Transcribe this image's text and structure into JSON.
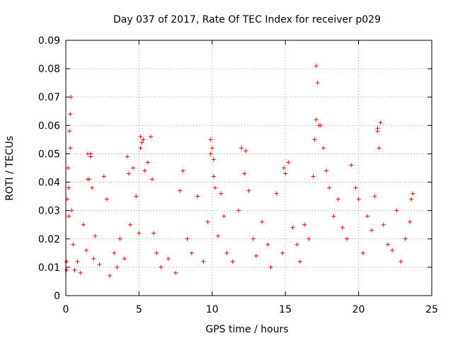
{
  "chart_data": {
    "type": "scatter",
    "title": "Day 037 of 2017, Rate Of TEC Index for receiver p029",
    "xlabel": "GPS time / hours",
    "ylabel": "ROTI / TECUs",
    "xlim": [
      0,
      25
    ],
    "ylim": [
      0,
      0.09
    ],
    "x_ticks": [
      "0",
      "5",
      "10",
      "15",
      "20",
      "25"
    ],
    "y_ticks": [
      "0",
      "0.01",
      "0.02",
      "0.03",
      "0.04",
      "0.05",
      "0.06",
      "0.07",
      "0.08",
      "0.09"
    ],
    "grid": true,
    "marker": "+",
    "color": "#ff0000",
    "series": [
      {
        "x": [
          0.05,
          0.1,
          0.15,
          0.2,
          0.25,
          0.3,
          0.35,
          0.4,
          0.5,
          0.6,
          0.8,
          1.0,
          1.2,
          1.4,
          1.5,
          1.6,
          1.7,
          1.8,
          1.9,
          2.0,
          2.3,
          2.6,
          2.8,
          3.0,
          3.3,
          3.5,
          3.7,
          4.0,
          4.2,
          4.4,
          4.6,
          4.8,
          5.0,
          5.1,
          5.2,
          5.4,
          5.6,
          5.8,
          6.0,
          6.2,
          6.5,
          7.0,
          7.5,
          7.8,
          8.0,
          8.3,
          8.6,
          9.0,
          9.4,
          9.7,
          9.9,
          10.0,
          10.1,
          10.2,
          10.4,
          10.6,
          10.8,
          11.0,
          11.4,
          11.8,
          12.0,
          12.2,
          12.5,
          12.8,
          13.0,
          13.4,
          13.8,
          14.0,
          14.4,
          14.8,
          15.0,
          15.2,
          15.5,
          15.8,
          16.0,
          16.3,
          16.6,
          16.9,
          17.0,
          17.1,
          17.2,
          17.4,
          17.6,
          17.8,
          18.0,
          18.3,
          18.6,
          18.9,
          19.2,
          19.5,
          19.8,
          20.0,
          20.3,
          20.6,
          20.9,
          21.1,
          21.3,
          21.5,
          21.7,
          22.0,
          22.3,
          22.6,
          22.9,
          23.2,
          23.5,
          23.7,
          0.05,
          0.2,
          0.3,
          1.5,
          1.7,
          4.3,
          5.1,
          5.3,
          5.9,
          9.9,
          10.1,
          12.3,
          14.9,
          17.1,
          17.3,
          21.3,
          21.4,
          23.6
        ],
        "y": [
          0.012,
          0.034,
          0.045,
          0.028,
          0.058,
          0.064,
          0.07,
          0.03,
          0.018,
          0.009,
          0.012,
          0.008,
          0.025,
          0.016,
          0.05,
          0.041,
          0.05,
          0.038,
          0.013,
          0.021,
          0.011,
          0.042,
          0.034,
          0.007,
          0.015,
          0.01,
          0.02,
          0.013,
          0.049,
          0.025,
          0.045,
          0.035,
          0.022,
          0.056,
          0.054,
          0.044,
          0.047,
          0.056,
          0.022,
          0.015,
          0.01,
          0.013,
          0.008,
          0.037,
          0.044,
          0.02,
          0.015,
          0.035,
          0.012,
          0.026,
          0.055,
          0.052,
          0.048,
          0.038,
          0.021,
          0.036,
          0.028,
          0.015,
          0.012,
          0.03,
          0.052,
          0.043,
          0.037,
          0.02,
          0.014,
          0.026,
          0.018,
          0.01,
          0.036,
          0.015,
          0.043,
          0.047,
          0.024,
          0.018,
          0.012,
          0.025,
          0.02,
          0.042,
          0.055,
          0.081,
          0.075,
          0.06,
          0.052,
          0.044,
          0.038,
          0.028,
          0.034,
          0.024,
          0.02,
          0.046,
          0.038,
          0.034,
          0.015,
          0.028,
          0.023,
          0.035,
          0.058,
          0.061,
          0.025,
          0.018,
          0.016,
          0.03,
          0.012,
          0.02,
          0.026,
          0.036,
          0.009,
          0.038,
          0.052,
          0.041,
          0.049,
          0.043,
          0.052,
          0.055,
          0.041,
          0.05,
          0.042,
          0.051,
          0.045,
          0.062,
          0.06,
          0.059,
          0.052,
          0.034
        ]
      }
    ]
  }
}
